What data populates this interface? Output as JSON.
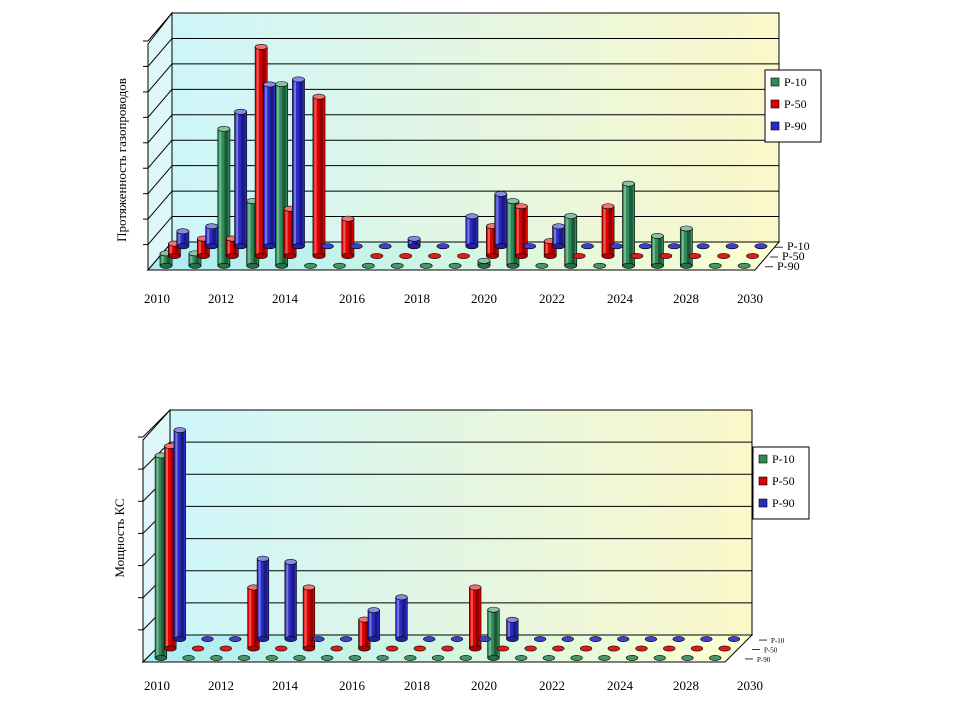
{
  "colors": {
    "P-10": "#2e8b57",
    "P-50": "#e00000",
    "P-90": "#2a2ac8"
  },
  "chart_data": [
    {
      "type": "bar",
      "ylabel": "Протяженность газопроводов",
      "xticklabels": [
        "2010",
        "2012",
        "2014",
        "2016",
        "2018",
        "2020",
        "2022",
        "2024",
        "2028",
        "2030"
      ],
      "categories": [
        "2010",
        "2011",
        "2012",
        "2013",
        "2014",
        "2015",
        "2016",
        "2017",
        "2018",
        "2019",
        "2020",
        "2021",
        "2022",
        "2023",
        "2024",
        "2025",
        "2026",
        "2027",
        "2028",
        "2029",
        "2030"
      ],
      "series": [
        {
          "name": "P-10",
          "values": [
            0.5,
            0.5,
            5.5,
            2.6,
            7.3,
            0,
            0,
            0,
            0,
            0,
            0,
            0.2,
            2.6,
            0,
            2.0,
            0,
            3.3,
            1.2,
            1.5,
            0,
            0
          ]
        },
        {
          "name": "P-50",
          "values": [
            0.5,
            0.7,
            0.7,
            8.4,
            1.9,
            6.4,
            1.5,
            0,
            0,
            0,
            0,
            1.2,
            2.0,
            0.6,
            0,
            2.0,
            0,
            0,
            0,
            0,
            0
          ]
        },
        {
          "name": "P-90",
          "values": [
            0.6,
            0.8,
            5.4,
            6.5,
            6.7,
            0,
            0,
            0,
            0.3,
            0,
            1.2,
            2.1,
            0,
            0.8,
            0,
            0,
            0,
            0,
            0,
            0,
            0
          ]
        }
      ],
      "legend": {
        "entries": [
          "P-10",
          "P-50",
          "P-90"
        ],
        "position": "right"
      },
      "series_axis_labels": [
        "P-10",
        "P-50",
        "P-90"
      ]
    },
    {
      "type": "bar",
      "ylabel": "Мощность КС",
      "xticklabels": [
        "2010",
        "2012",
        "2014",
        "2016",
        "2018",
        "2020",
        "2022",
        "2024",
        "2028",
        "2030"
      ],
      "categories": [
        "2010",
        "2011",
        "2012",
        "2013",
        "2014",
        "2015",
        "2016",
        "2017",
        "2018",
        "2019",
        "2020",
        "2021",
        "2022",
        "2023",
        "2024",
        "2025",
        "2026",
        "2027",
        "2028",
        "2029",
        "2030"
      ],
      "series": [
        {
          "name": "P-10",
          "values": [
            6.3,
            0,
            0,
            0,
            0,
            0,
            0,
            0,
            0,
            0,
            0,
            0,
            1.5,
            0,
            0,
            0,
            0,
            0,
            0,
            0,
            0
          ]
        },
        {
          "name": "P-50",
          "values": [
            6.3,
            0,
            0,
            1.9,
            0,
            1.9,
            0,
            0.9,
            0,
            0,
            0,
            1.9,
            0,
            0,
            0,
            0,
            0,
            0,
            0,
            0,
            0
          ]
        },
        {
          "name": "P-90",
          "values": [
            6.5,
            0,
            0,
            2.5,
            2.4,
            0,
            0,
            0.9,
            1.3,
            0,
            0,
            0,
            0.6,
            0,
            0,
            0,
            0,
            0,
            0,
            0,
            0
          ]
        }
      ],
      "legend": {
        "entries": [
          "P-10",
          "P-50",
          "P-90"
        ],
        "position": "right"
      },
      "series_axis_labels": [
        "P-10",
        "P-50",
        "P-90"
      ]
    }
  ]
}
